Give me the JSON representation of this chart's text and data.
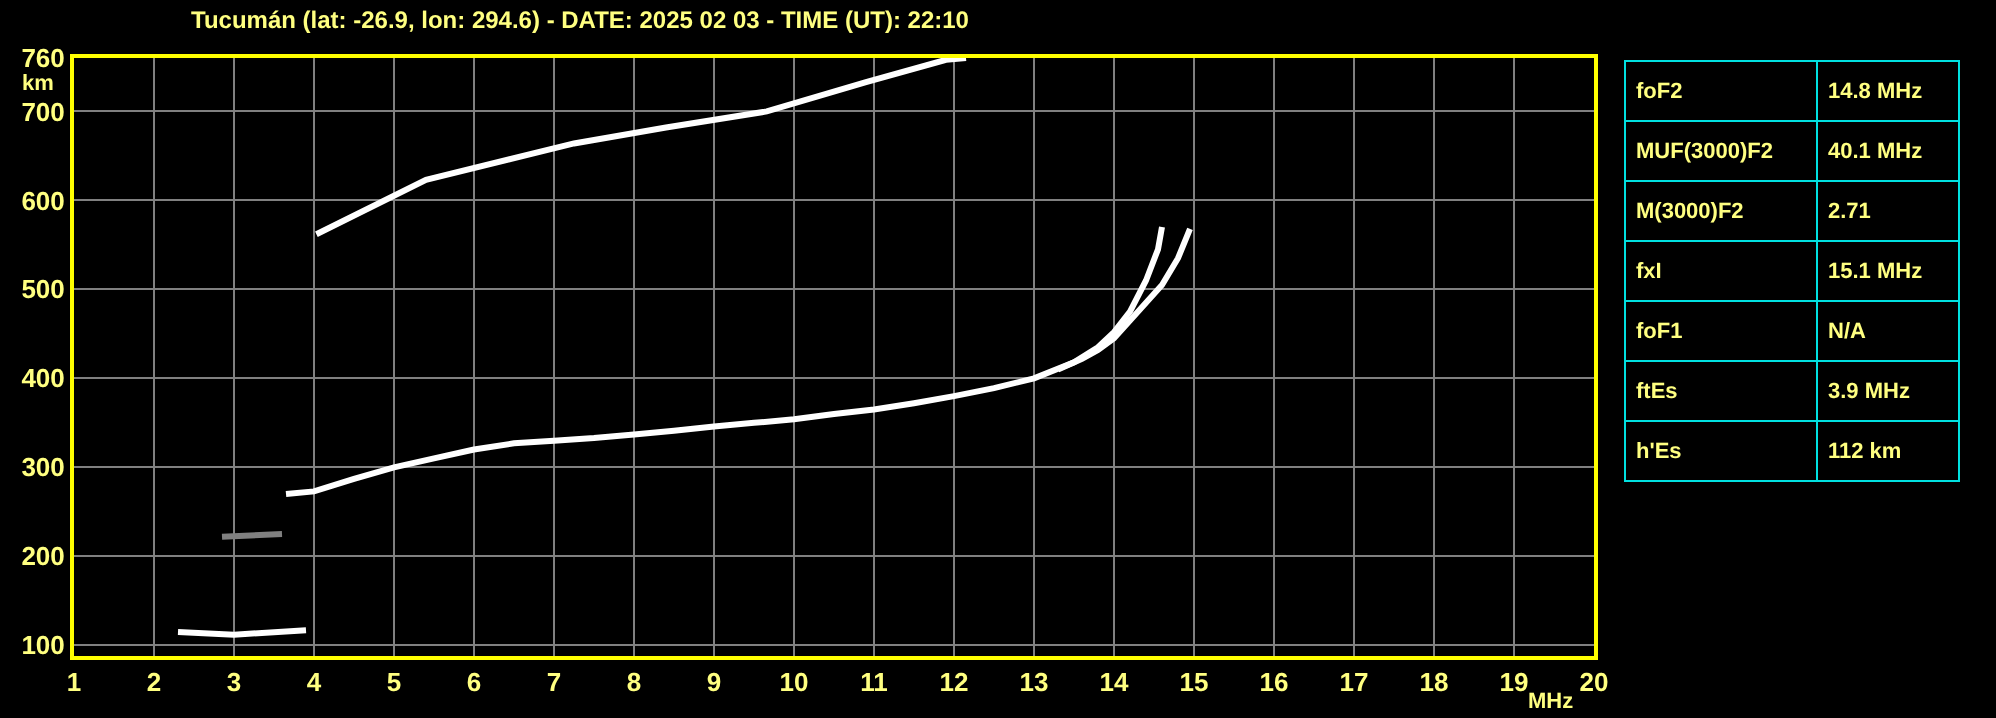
{
  "chart_data": {
    "type": "line",
    "title": "Tucumán (lat: -26.9, lon: 294.6) - DATE: 2025 02 03 - TIME (UT): 22:10",
    "xlabel": "MHz",
    "ylabel": "km",
    "xlim": [
      1,
      20
    ],
    "ylim": [
      88,
      760
    ],
    "xticks": [
      1,
      2,
      3,
      4,
      5,
      6,
      7,
      8,
      9,
      10,
      11,
      12,
      13,
      14,
      15,
      16,
      17,
      18,
      19,
      20
    ],
    "yticks": [
      100,
      200,
      300,
      400,
      500,
      600,
      700,
      760
    ],
    "grid": true,
    "marker": "none",
    "line_style": "solid",
    "series": [
      {
        "color": "#ffffff",
        "x": [
          3.65,
          4,
          4.5,
          5,
          5.5,
          6,
          6.5,
          7,
          7.5,
          8,
          8.5,
          9,
          9.5,
          10,
          10.5,
          11,
          11.5,
          12,
          12.5,
          13,
          13.5,
          13.8,
          14,
          14.2,
          14.4,
          14.55,
          14.6
        ],
        "values": [
          270,
          273,
          287,
          300,
          310,
          320,
          327,
          330,
          333,
          337,
          341,
          346,
          350,
          354,
          360,
          365,
          372,
          380,
          389,
          400,
          418,
          435,
          452,
          475,
          510,
          545,
          570
        ]
      },
      {
        "color": "#ffffff",
        "x": [
          13.3,
          13.6,
          13.8,
          14,
          14.2,
          14.4,
          14.6,
          14.8,
          14.95
        ],
        "values": [
          410,
          422,
          432,
          445,
          465,
          485,
          505,
          535,
          568
        ]
      },
      {
        "color": "#ffffff",
        "x": [
          2.3,
          3,
          3.9
        ],
        "values": [
          115,
          112,
          117
        ]
      },
      {
        "color": "#808080",
        "x": [
          2.85,
          3.6
        ],
        "values": [
          222,
          225
        ]
      },
      {
        "color": "#ffffff",
        "x": [
          4.03,
          5.4,
          7.25,
          8.4,
          9.66,
          10.9,
          11.9,
          12.15
        ],
        "values": [
          562,
          623,
          664,
          682,
          700,
          733,
          758,
          760
        ]
      }
    ],
    "annotations": [
      "foF2",
      "14.8 MHz",
      "MUF(3000)F2",
      "40.1 MHz",
      "M(3000)F2",
      "2.71",
      "fxI",
      "15.1 MHz",
      "foF1",
      "N/A",
      "ftEs",
      "3.9 MHz",
      "h'Es",
      "112 km"
    ]
  }
}
